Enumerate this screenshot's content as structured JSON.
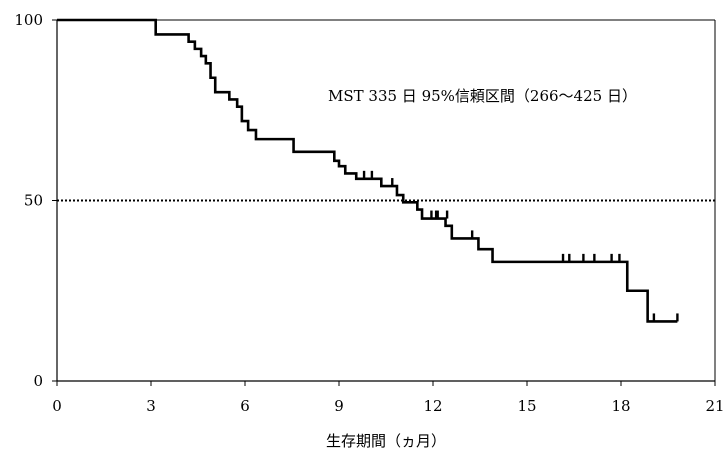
{
  "chart_data": {
    "type": "line",
    "title": "",
    "xlabel": "生存期間（ヵ月）",
    "ylabel": "",
    "xlim": [
      0,
      21
    ],
    "ylim": [
      0,
      100
    ],
    "xticks": [
      0,
      3,
      6,
      9,
      12,
      15,
      18,
      21
    ],
    "yticks": [
      0,
      50,
      100
    ],
    "xtick_labels": [
      "0",
      "3",
      "6",
      "9",
      "12",
      "15",
      "18",
      "21"
    ],
    "ytick_labels": [
      "0",
      "50",
      "100"
    ],
    "grid": false,
    "reference_line": {
      "y": 50,
      "style": "dotted"
    },
    "annotation": "MST 335 日 95%信頼区間（266〜425 日）",
    "series": [
      {
        "step": true,
        "x": [
          0,
          3.0,
          3.15,
          4.2,
          4.4,
          4.6,
          4.75,
          4.9,
          5.05,
          5.5,
          5.75,
          5.9,
          6.1,
          6.35,
          6.75,
          7.55,
          8.85,
          9.0,
          9.2,
          9.55,
          10.1,
          10.35,
          10.85,
          11.05,
          11.5,
          11.65,
          12.4,
          12.6,
          13.45,
          13.9,
          18.2,
          18.85,
          19.8
        ],
        "y": [
          100,
          100,
          96,
          94,
          92,
          90,
          88,
          84,
          80,
          78,
          76,
          72,
          69.5,
          67,
          67,
          63.5,
          61,
          59.5,
          57.5,
          56,
          56,
          54,
          51.5,
          49.5,
          47.5,
          45,
          43,
          39.5,
          36.5,
          33,
          25,
          16.5,
          16.5
        ]
      }
    ],
    "censor_marks": [
      {
        "x": 9.8,
        "y": 56
      },
      {
        "x": 10.05,
        "y": 56
      },
      {
        "x": 10.7,
        "y": 54
      },
      {
        "x": 11.95,
        "y": 45
      },
      {
        "x": 12.1,
        "y": 45
      },
      {
        "x": 12.15,
        "y": 45
      },
      {
        "x": 12.45,
        "y": 45
      },
      {
        "x": 13.25,
        "y": 39.5
      },
      {
        "x": 16.15,
        "y": 33
      },
      {
        "x": 16.35,
        "y": 33
      },
      {
        "x": 16.8,
        "y": 33
      },
      {
        "x": 17.15,
        "y": 33
      },
      {
        "x": 17.7,
        "y": 33
      },
      {
        "x": 17.95,
        "y": 33
      },
      {
        "x": 19.05,
        "y": 16.5
      },
      {
        "x": 19.8,
        "y": 16.5
      }
    ]
  }
}
